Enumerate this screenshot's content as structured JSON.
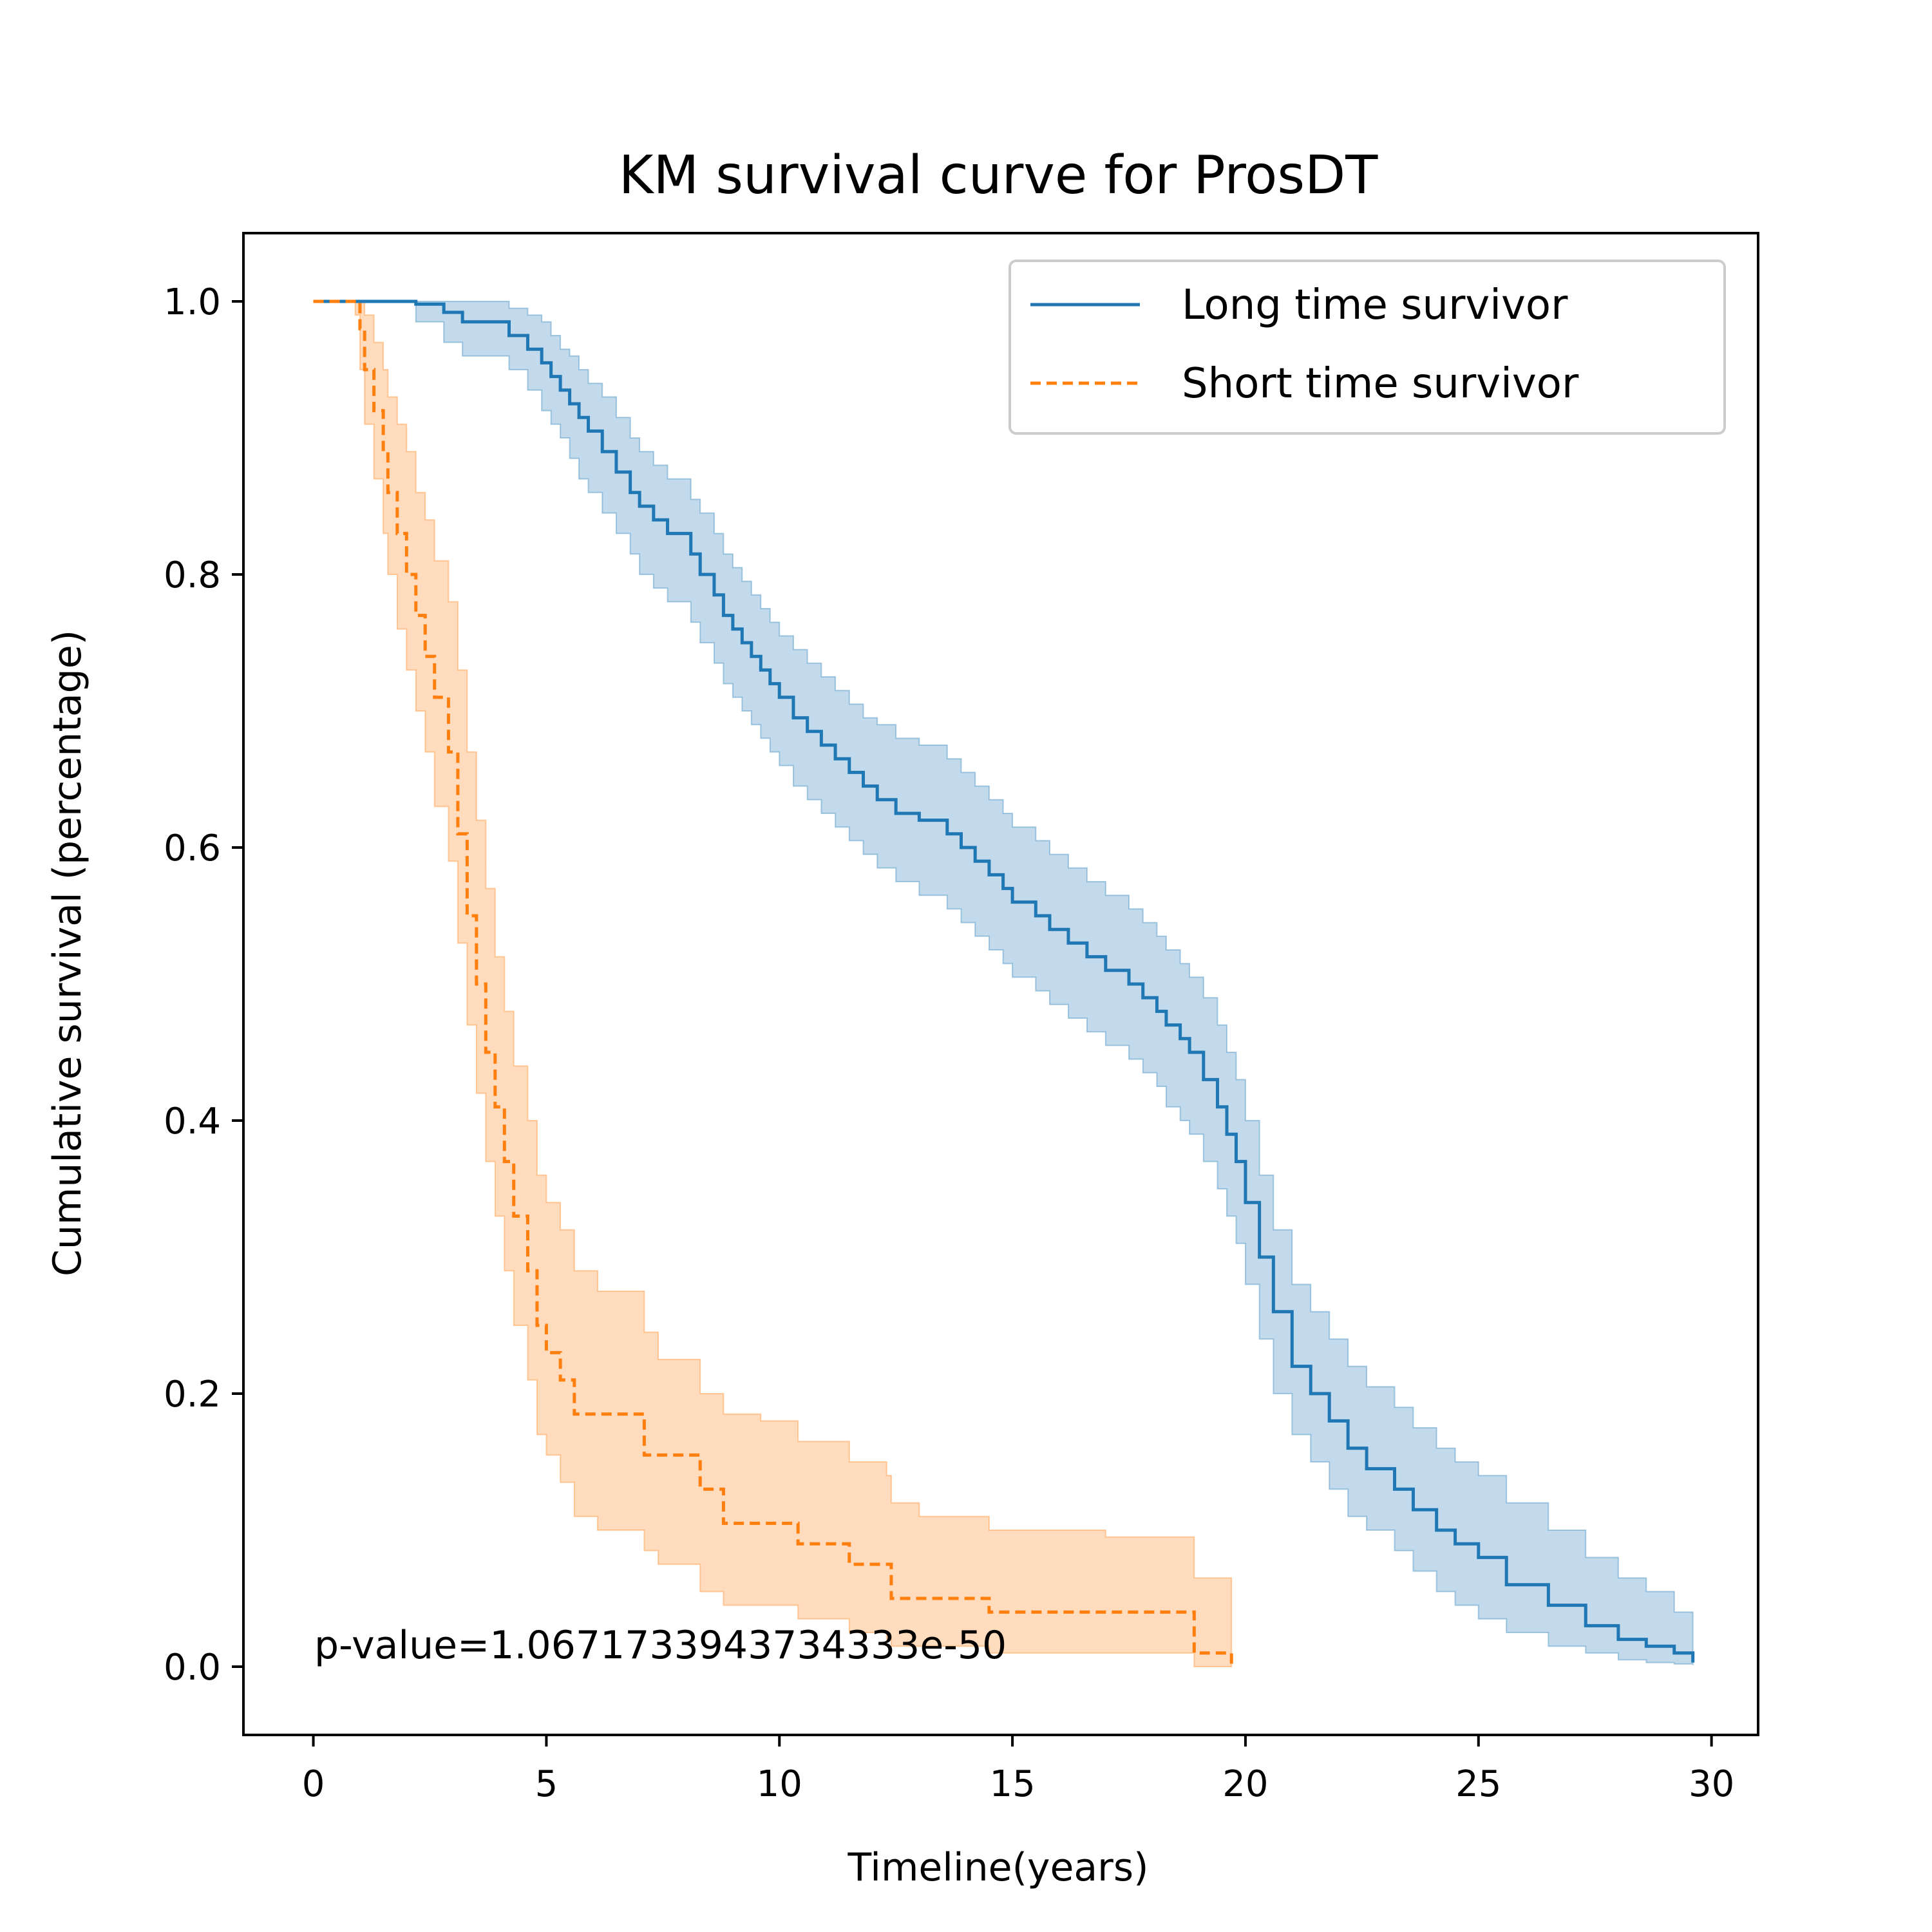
{
  "chart_data": {
    "type": "line",
    "title": "KM survival curve for ProsDT",
    "xlabel": "Timeline(years)",
    "ylabel": "Cumulative survival (percentage)",
    "xlim": [
      -1.5,
      31
    ],
    "ylim": [
      -0.05,
      1.05
    ],
    "xticks": [
      0,
      5,
      10,
      15,
      20,
      25,
      30
    ],
    "yticks": [
      0.0,
      0.2,
      0.4,
      0.6,
      0.8,
      1.0
    ],
    "ytick_labels": [
      "0.0",
      "0.2",
      "0.4",
      "0.6",
      "0.8",
      "1.0"
    ],
    "grid": false,
    "legend_position": "top-right",
    "annotation": "p-value=1.0671733943734333e-50",
    "series": [
      {
        "name": "Long time survivor",
        "color": "#1f77b4",
        "line_style": "solid",
        "x": [
          0,
          2.2,
          2.8,
          3.2,
          4.2,
          4.6,
          4.9,
          5.1,
          5.3,
          5.5,
          5.7,
          5.9,
          6.2,
          6.5,
          6.8,
          7.0,
          7.3,
          7.6,
          8.1,
          8.3,
          8.6,
          8.8,
          9.0,
          9.2,
          9.4,
          9.6,
          9.8,
          10.0,
          10.3,
          10.6,
          10.9,
          11.2,
          11.5,
          11.8,
          12.1,
          12.5,
          13.0,
          13.6,
          13.9,
          14.2,
          14.5,
          14.8,
          15.0,
          15.5,
          15.8,
          16.2,
          16.6,
          17.0,
          17.5,
          17.8,
          18.1,
          18.3,
          18.6,
          18.8,
          19.1,
          19.4,
          19.6,
          19.8,
          20.0,
          20.3,
          20.6,
          21.0,
          21.4,
          21.8,
          22.2,
          22.6,
          23.2,
          23.6,
          24.1,
          24.5,
          25.0,
          25.6,
          26.5,
          27.3,
          28.0,
          28.6,
          29.2,
          29.6
        ],
        "y": [
          1.0,
          0.998,
          0.992,
          0.985,
          0.975,
          0.965,
          0.955,
          0.945,
          0.935,
          0.925,
          0.915,
          0.905,
          0.89,
          0.875,
          0.86,
          0.85,
          0.84,
          0.83,
          0.815,
          0.8,
          0.785,
          0.77,
          0.76,
          0.75,
          0.74,
          0.73,
          0.72,
          0.71,
          0.695,
          0.685,
          0.675,
          0.665,
          0.655,
          0.645,
          0.635,
          0.625,
          0.62,
          0.61,
          0.6,
          0.59,
          0.58,
          0.57,
          0.56,
          0.55,
          0.54,
          0.53,
          0.52,
          0.51,
          0.5,
          0.49,
          0.48,
          0.47,
          0.46,
          0.45,
          0.43,
          0.41,
          0.39,
          0.37,
          0.34,
          0.3,
          0.26,
          0.22,
          0.2,
          0.18,
          0.16,
          0.145,
          0.13,
          0.115,
          0.1,
          0.09,
          0.08,
          0.06,
          0.045,
          0.03,
          0.02,
          0.015,
          0.01,
          0.003
        ],
        "ci_upper": [
          1.0,
          1.0,
          1.0,
          1.0,
          0.995,
          0.99,
          0.985,
          0.975,
          0.965,
          0.96,
          0.95,
          0.94,
          0.93,
          0.915,
          0.9,
          0.89,
          0.88,
          0.87,
          0.855,
          0.845,
          0.83,
          0.815,
          0.805,
          0.795,
          0.785,
          0.775,
          0.765,
          0.755,
          0.745,
          0.735,
          0.725,
          0.715,
          0.705,
          0.695,
          0.69,
          0.68,
          0.675,
          0.665,
          0.655,
          0.645,
          0.635,
          0.625,
          0.615,
          0.605,
          0.595,
          0.585,
          0.575,
          0.565,
          0.555,
          0.545,
          0.535,
          0.525,
          0.515,
          0.505,
          0.49,
          0.47,
          0.45,
          0.43,
          0.4,
          0.36,
          0.32,
          0.28,
          0.26,
          0.24,
          0.22,
          0.205,
          0.19,
          0.175,
          0.16,
          0.15,
          0.14,
          0.12,
          0.1,
          0.08,
          0.065,
          0.055,
          0.04,
          0.025
        ],
        "ci_lower": [
          1.0,
          0.985,
          0.97,
          0.96,
          0.95,
          0.935,
          0.92,
          0.91,
          0.9,
          0.885,
          0.87,
          0.86,
          0.845,
          0.83,
          0.815,
          0.8,
          0.79,
          0.78,
          0.765,
          0.75,
          0.735,
          0.72,
          0.71,
          0.7,
          0.69,
          0.68,
          0.67,
          0.66,
          0.645,
          0.635,
          0.625,
          0.615,
          0.605,
          0.595,
          0.585,
          0.575,
          0.565,
          0.555,
          0.545,
          0.535,
          0.525,
          0.515,
          0.505,
          0.495,
          0.485,
          0.475,
          0.465,
          0.455,
          0.445,
          0.435,
          0.425,
          0.41,
          0.4,
          0.39,
          0.37,
          0.35,
          0.33,
          0.31,
          0.28,
          0.24,
          0.2,
          0.17,
          0.15,
          0.13,
          0.11,
          0.1,
          0.085,
          0.07,
          0.055,
          0.045,
          0.035,
          0.025,
          0.015,
          0.01,
          0.005,
          0.003,
          0.002,
          0.001
        ]
      },
      {
        "name": "Short time survivor",
        "color": "#ff7f0e",
        "line_style": "dashed",
        "x": [
          0,
          0.9,
          1.0,
          1.1,
          1.3,
          1.5,
          1.6,
          1.8,
          2.0,
          2.2,
          2.4,
          2.6,
          2.9,
          3.1,
          3.3,
          3.5,
          3.7,
          3.9,
          4.1,
          4.3,
          4.6,
          4.8,
          5.0,
          5.3,
          5.6,
          6.1,
          7.1,
          7.4,
          8.3,
          8.8,
          9.6,
          10.4,
          11.5,
          12.3,
          12.4,
          13.0,
          14.5,
          17.0,
          18.9,
          19.7
        ],
        "y": [
          1.0,
          1.0,
          0.98,
          0.95,
          0.92,
          0.89,
          0.86,
          0.83,
          0.8,
          0.77,
          0.74,
          0.71,
          0.67,
          0.61,
          0.55,
          0.5,
          0.45,
          0.41,
          0.37,
          0.33,
          0.29,
          0.25,
          0.23,
          0.21,
          0.185,
          0.185,
          0.155,
          0.155,
          0.13,
          0.105,
          0.105,
          0.09,
          0.075,
          0.075,
          0.05,
          0.05,
          0.04,
          0.04,
          0.01,
          0.0
        ],
        "ci_upper": [
          1.0,
          1.0,
          1.0,
          0.99,
          0.97,
          0.95,
          0.93,
          0.91,
          0.89,
          0.86,
          0.84,
          0.81,
          0.78,
          0.73,
          0.67,
          0.62,
          0.57,
          0.52,
          0.48,
          0.44,
          0.4,
          0.36,
          0.34,
          0.32,
          0.29,
          0.275,
          0.245,
          0.225,
          0.2,
          0.185,
          0.18,
          0.165,
          0.15,
          0.14,
          0.12,
          0.11,
          0.1,
          0.095,
          0.065,
          0.035
        ],
        "ci_lower": [
          1.0,
          0.99,
          0.95,
          0.91,
          0.87,
          0.83,
          0.8,
          0.76,
          0.73,
          0.7,
          0.67,
          0.63,
          0.59,
          0.53,
          0.47,
          0.42,
          0.37,
          0.33,
          0.29,
          0.25,
          0.21,
          0.17,
          0.155,
          0.135,
          0.11,
          0.1,
          0.085,
          0.075,
          0.055,
          0.045,
          0.045,
          0.035,
          0.025,
          0.02,
          0.015,
          0.015,
          0.01,
          0.01,
          0.0,
          0.0
        ]
      }
    ]
  }
}
